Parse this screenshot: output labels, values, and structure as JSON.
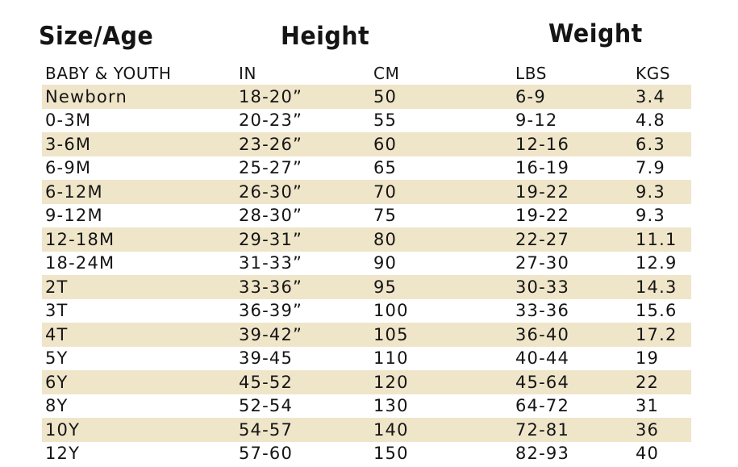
{
  "headings": {
    "size_age": "Size/Age",
    "height": "Height",
    "weight": "Weight"
  },
  "columns": {
    "size": "BABY & YOUTH",
    "in": "IN",
    "cm": "CM",
    "lbs": "LBS",
    "kgs": "KGS"
  },
  "colors": {
    "row_shade": "#efe5c9",
    "text": "#151515"
  },
  "rows": [
    {
      "size": "Newborn",
      "in": "18-20”",
      "cm": "50",
      "lbs": "6-9",
      "kgs": "3.4"
    },
    {
      "size": "0-3M",
      "in": "20-23”",
      "cm": "55",
      "lbs": "9-12",
      "kgs": "4.8"
    },
    {
      "size": "3-6M",
      "in": "23-26”",
      "cm": "60",
      "lbs": "12-16",
      "kgs": "6.3"
    },
    {
      "size": "6-9M",
      "in": "25-27”",
      "cm": "65",
      "lbs": "16-19",
      "kgs": "7.9"
    },
    {
      "size": "6-12M",
      "in": "26-30”",
      "cm": "70",
      "lbs": "19-22",
      "kgs": "9.3"
    },
    {
      "size": "9-12M",
      "in": "28-30”",
      "cm": "75",
      "lbs": "19-22",
      "kgs": "9.3"
    },
    {
      "size": "12-18M",
      "in": "29-31”",
      "cm": "80",
      "lbs": "22-27",
      "kgs": "11.1"
    },
    {
      "size": "18-24M",
      "in": "31-33”",
      "cm": "90",
      "lbs": "27-30",
      "kgs": "12.9"
    },
    {
      "size": "2T",
      "in": "33-36”",
      "cm": "95",
      "lbs": "30-33",
      "kgs": "14.3"
    },
    {
      "size": "3T",
      "in": "36-39”",
      "cm": "100",
      "lbs": "33-36",
      "kgs": "15.6"
    },
    {
      "size": "4T",
      "in": "39-42”",
      "cm": "105",
      "lbs": "36-40",
      "kgs": "17.2"
    },
    {
      "size": "5Y",
      "in": "39-45",
      "cm": "110",
      "lbs": "40-44",
      "kgs": "19"
    },
    {
      "size": "6Y",
      "in": "45-52",
      "cm": "120",
      "lbs": "45-64",
      "kgs": "22"
    },
    {
      "size": "8Y",
      "in": "52-54",
      "cm": "130",
      "lbs": "64-72",
      "kgs": "31"
    },
    {
      "size": "10Y",
      "in": "54-57",
      "cm": "140",
      "lbs": "72-81",
      "kgs": "36"
    },
    {
      "size": "12Y",
      "in": "57-60",
      "cm": "150",
      "lbs": "82-93",
      "kgs": "40"
    }
  ]
}
